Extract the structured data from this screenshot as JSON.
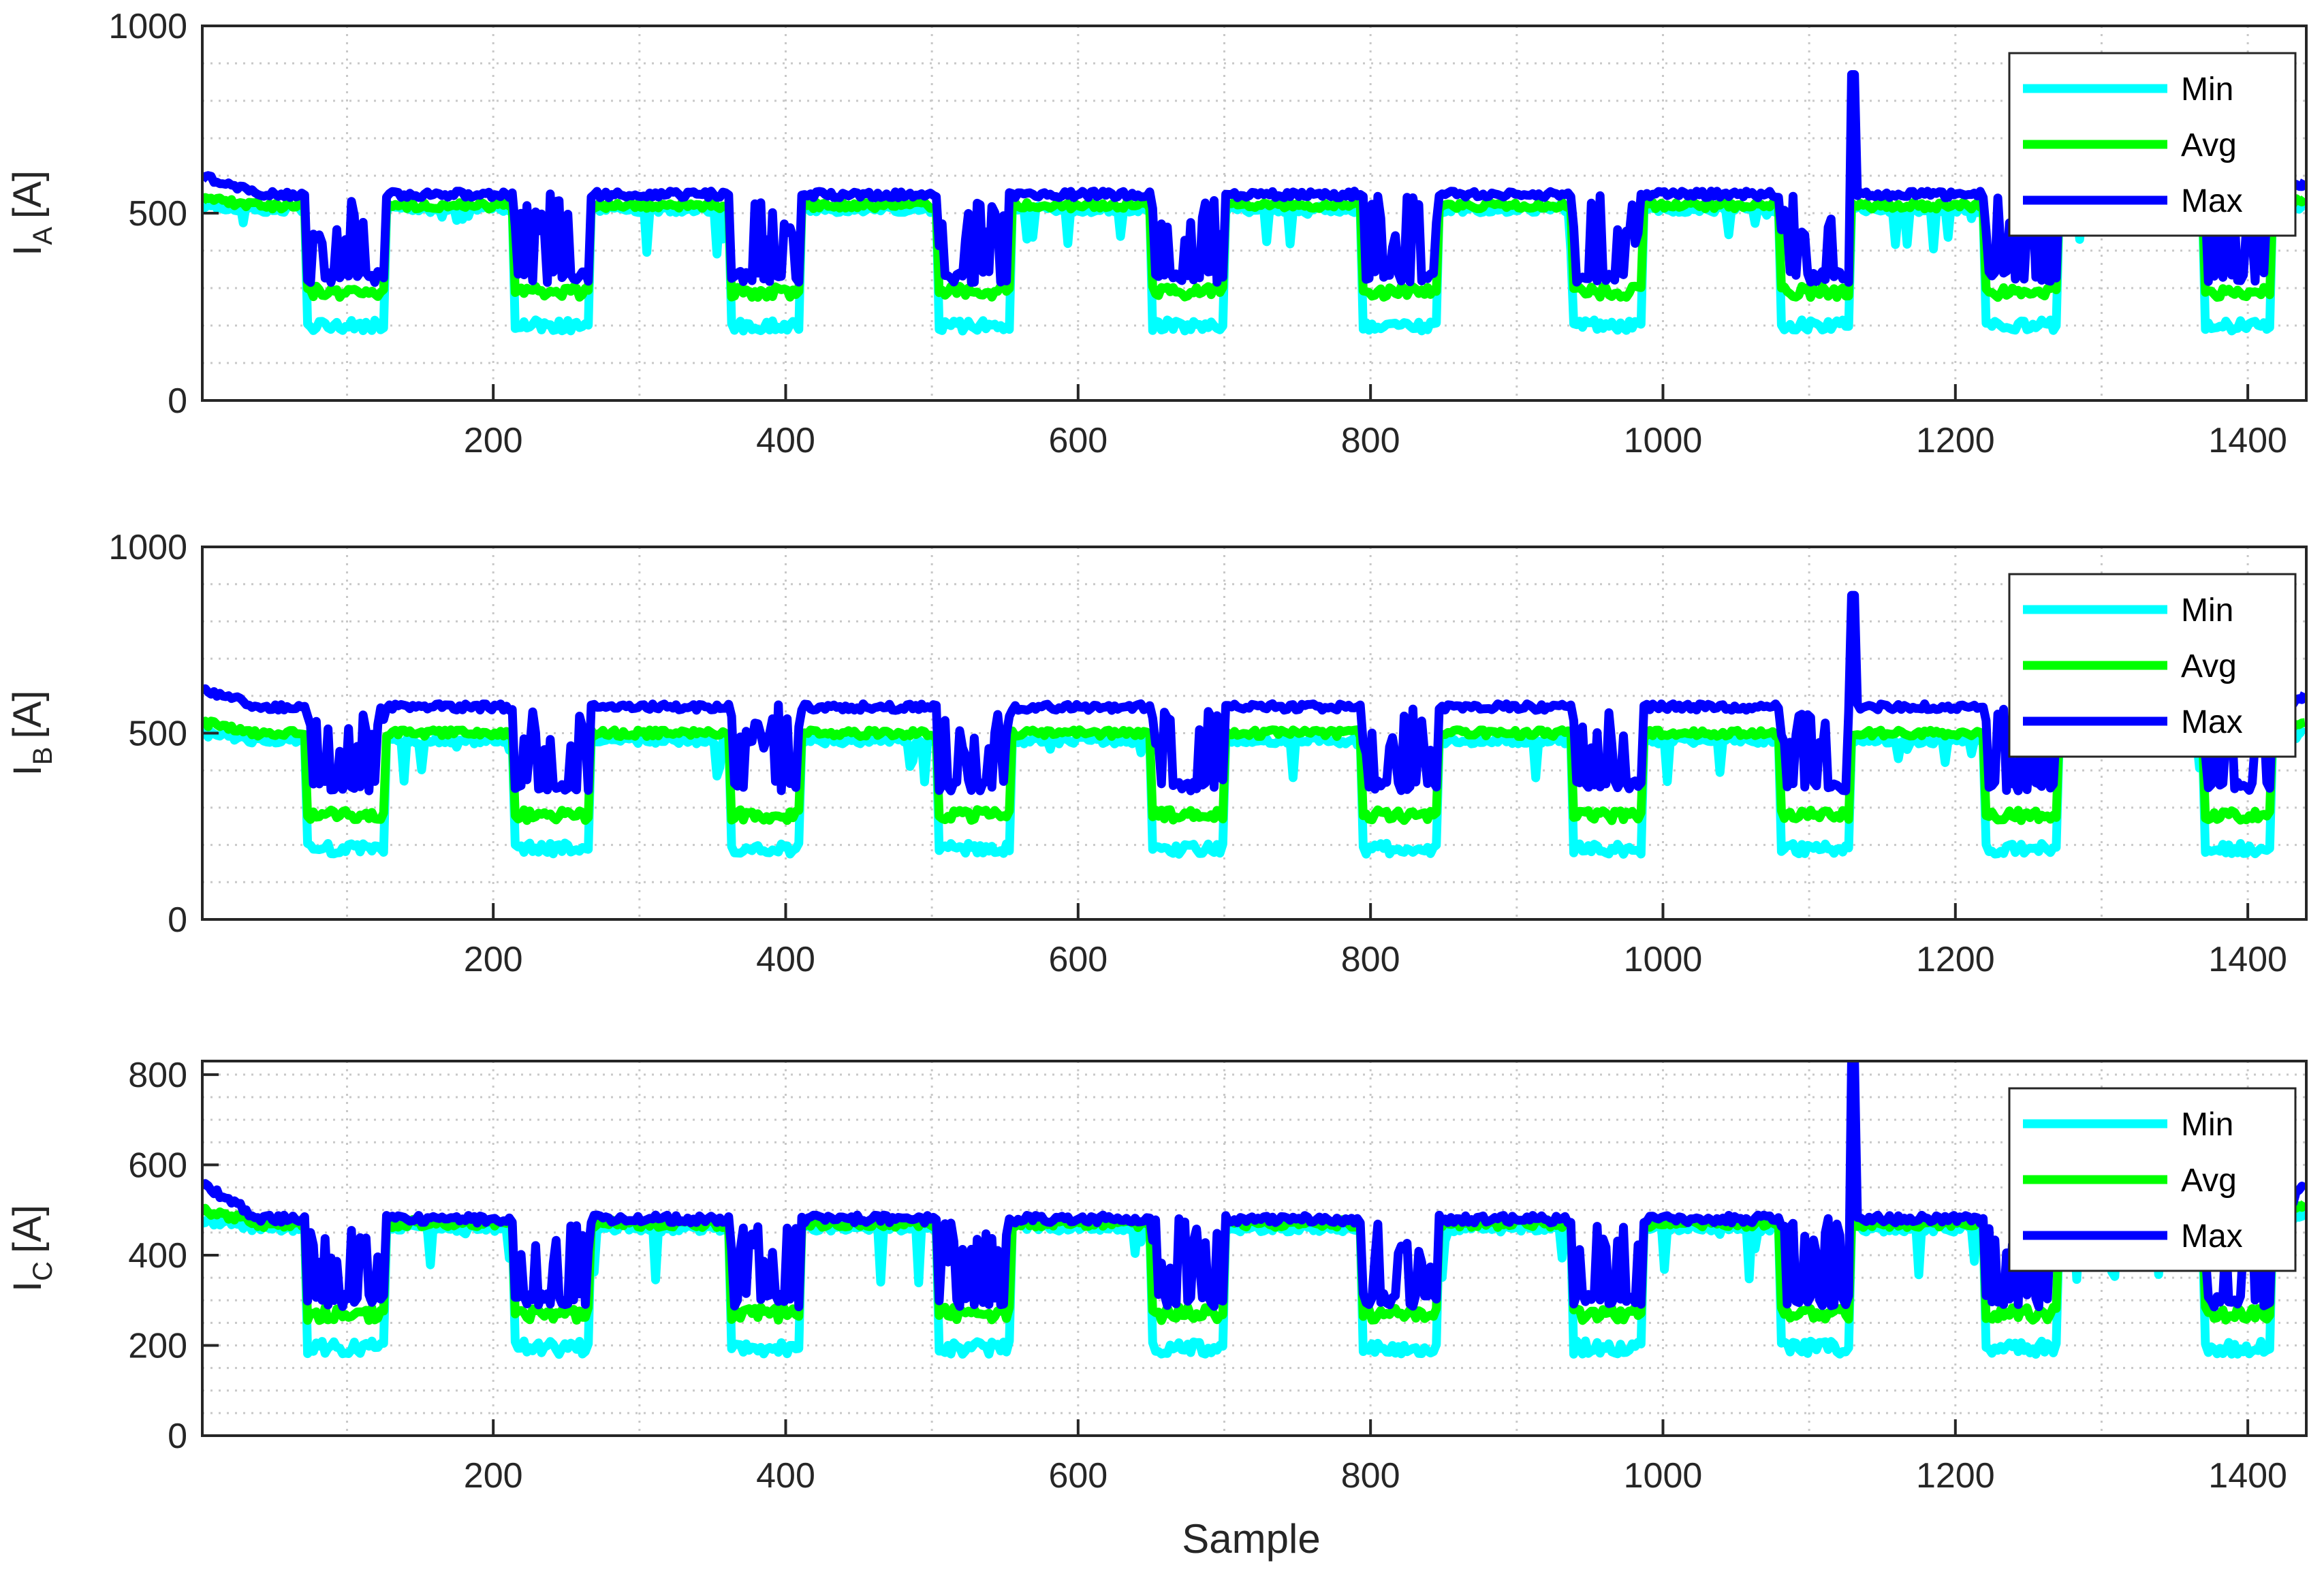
{
  "figure": {
    "xlabel": "Sample"
  },
  "chart_data": [
    {
      "type": "line",
      "ylabel_main": "I",
      "ylabel_sub": "A",
      "ylabel_unit": "[A]",
      "xlim": [
        1,
        1440
      ],
      "ylim": [
        0,
        1000
      ],
      "xticks": [
        "200",
        "400",
        "600",
        "800",
        "1000",
        "1200",
        "1400"
      ],
      "yticks": [
        "0",
        "500",
        "1000"
      ],
      "legend": [
        "Min",
        "Avg",
        "Max"
      ],
      "legend_position": "top-right",
      "grid": "major+minor dotted",
      "series": [
        {
          "name": "Min",
          "color": "#00FFFF",
          "low": 200,
          "high": 510,
          "start": 520,
          "end": 520
        },
        {
          "name": "Avg",
          "color": "#00FF00",
          "low": 290,
          "high": 520,
          "start": 540,
          "end": 540
        },
        {
          "name": "Max",
          "color": "#0000FF",
          "low": 330,
          "high": 550,
          "start": 600,
          "end": 580,
          "spike": {
            "x": 1130,
            "y": 870
          }
        }
      ]
    },
    {
      "type": "line",
      "ylabel_main": "I",
      "ylabel_sub": "B",
      "ylabel_unit": "[A]",
      "xlim": [
        1,
        1440
      ],
      "ylim": [
        0,
        1000
      ],
      "xticks": [
        "200",
        "400",
        "600",
        "800",
        "1000",
        "1200",
        "1400"
      ],
      "yticks": [
        "0",
        "500",
        "1000"
      ],
      "legend": [
        "Min",
        "Avg",
        "Max"
      ],
      "legend_position": "top-right",
      "grid": "major+minor dotted",
      "series": [
        {
          "name": "Min",
          "color": "#00FFFF",
          "low": 190,
          "high": 480,
          "start": 500,
          "end": 500
        },
        {
          "name": "Avg",
          "color": "#00FF00",
          "low": 280,
          "high": 500,
          "start": 530,
          "end": 530
        },
        {
          "name": "Max",
          "color": "#0000FF",
          "low": 360,
          "high": 570,
          "start": 620,
          "end": 600,
          "spike": {
            "x": 1130,
            "y": 870
          }
        }
      ]
    },
    {
      "type": "line",
      "ylabel_main": "I",
      "ylabel_sub": "C",
      "ylabel_unit": "[A]",
      "xlim": [
        1,
        1440
      ],
      "ylim": [
        0,
        830
      ],
      "xticks": [
        "200",
        "400",
        "600",
        "800",
        "1000",
        "1200",
        "1400"
      ],
      "yticks": [
        "0",
        "200",
        "400",
        "600",
        "800"
      ],
      "legend": [
        "Min",
        "Avg",
        "Max"
      ],
      "legend_position": "top-right",
      "grid": "major+minor dotted",
      "series": [
        {
          "name": "Min",
          "color": "#00FFFF",
          "low": 195,
          "high": 460,
          "start": 480,
          "end": 500
        },
        {
          "name": "Avg",
          "color": "#00FF00",
          "low": 270,
          "high": 470,
          "start": 500,
          "end": 520
        },
        {
          "name": "Max",
          "color": "#0000FF",
          "low": 300,
          "high": 480,
          "start": 560,
          "end": 560,
          "spike": {
            "x": 1130,
            "y": 830
          }
        }
      ]
    }
  ]
}
